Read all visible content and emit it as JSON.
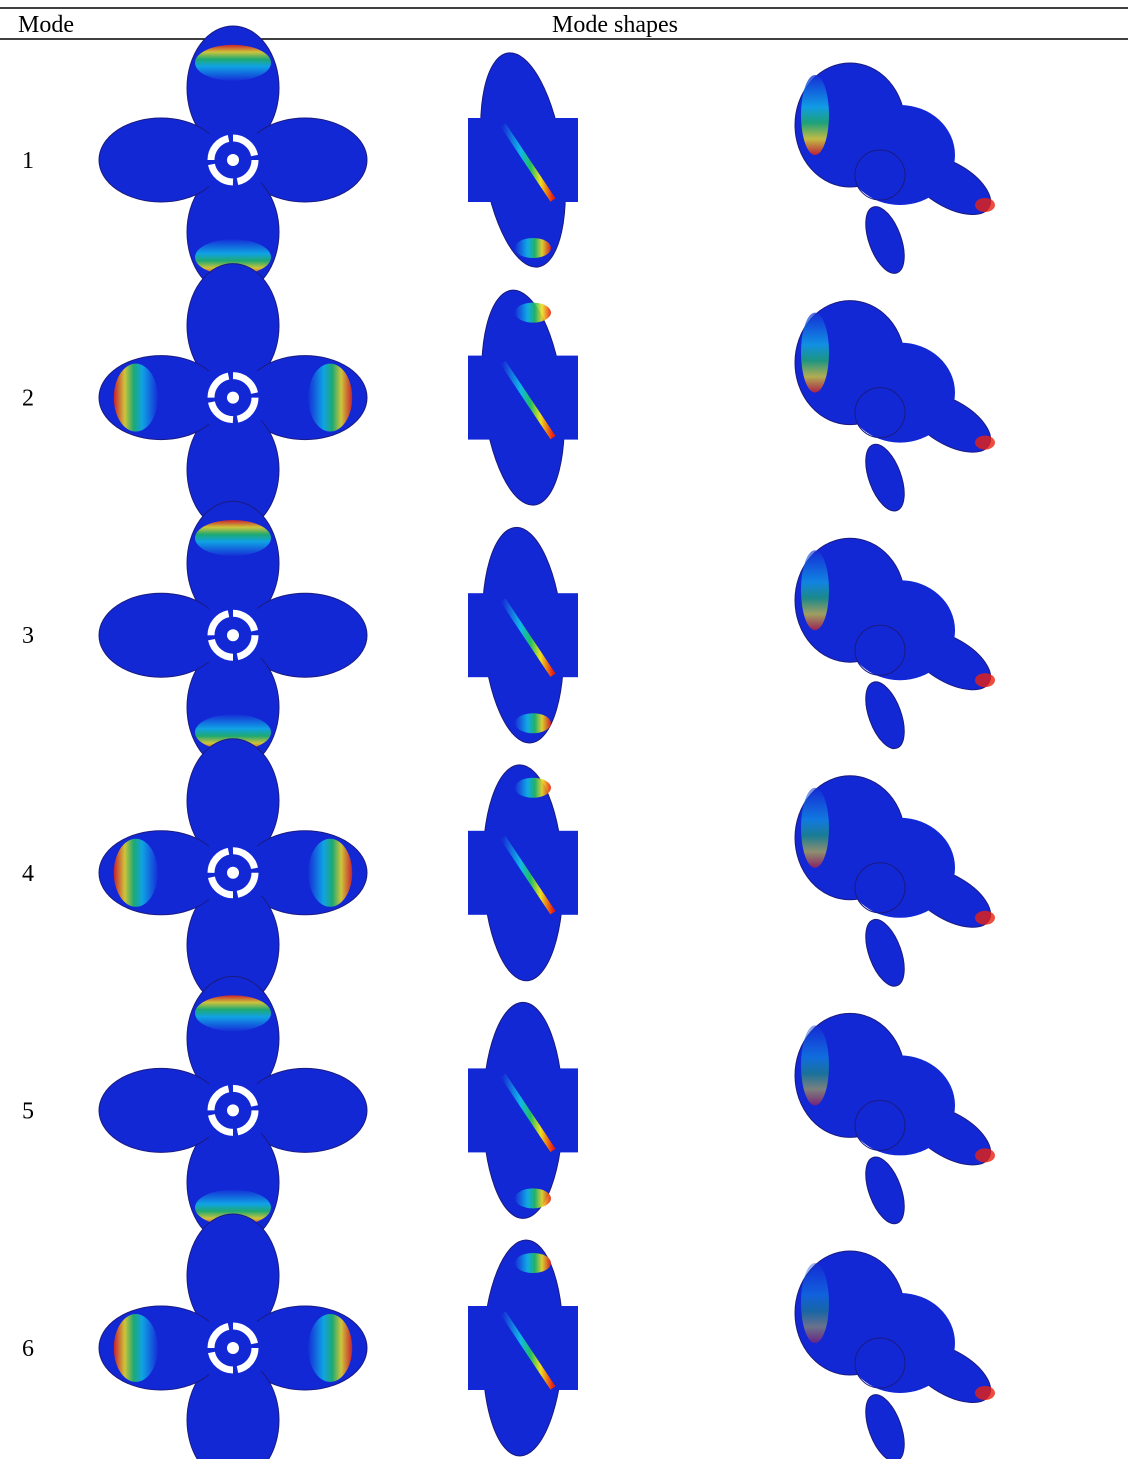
{
  "table": {
    "headers": [
      "Mode",
      "Mode shapes"
    ],
    "rows": [
      {
        "mode": "1"
      },
      {
        "mode": "2"
      },
      {
        "mode": "3"
      },
      {
        "mode": "4"
      },
      {
        "mode": "5"
      },
      {
        "mode": "6"
      }
    ]
  }
}
